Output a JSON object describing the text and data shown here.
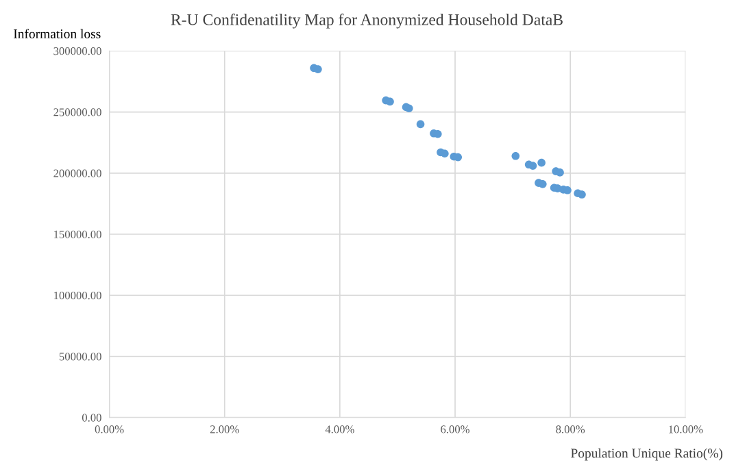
{
  "chart_data": {
    "type": "scatter",
    "title": "R-U Confidenatility Map for Anonymized Household DataB",
    "xlabel": "Population Unique Ratio(%)",
    "ylabel": "Information loss",
    "x": [
      3.55,
      3.62,
      4.8,
      4.87,
      5.15,
      5.2,
      5.4,
      5.63,
      5.7,
      5.75,
      5.82,
      5.98,
      6.05,
      7.05,
      7.28,
      7.35,
      7.5,
      7.75,
      7.82,
      7.45,
      7.52,
      7.72,
      7.78,
      7.88,
      7.95,
      8.13,
      8.2
    ],
    "series": [
      {
        "color": "#5b9bd5",
        "values": [
          286000,
          285000,
          259500,
          258500,
          254000,
          253000,
          240000,
          232500,
          232000,
          217000,
          216000,
          213500,
          213000,
          214000,
          207000,
          206000,
          208500,
          201500,
          200500,
          192000,
          191000,
          188000,
          187500,
          186500,
          186000,
          183500,
          182500
        ]
      }
    ],
    "xlim": [
      0,
      10
    ],
    "ylim": [
      0,
      300000
    ],
    "xticks": [
      {
        "value": 0,
        "label": "0.00%"
      },
      {
        "value": 2,
        "label": "2.00%"
      },
      {
        "value": 4,
        "label": "4.00%"
      },
      {
        "value": 6,
        "label": "6.00%"
      },
      {
        "value": 8,
        "label": "8.00%"
      },
      {
        "value": 10,
        "label": "10.00%"
      }
    ],
    "yticks": [
      {
        "value": 0,
        "label": "0.00"
      },
      {
        "value": 50000,
        "label": "50000.00"
      },
      {
        "value": 100000,
        "label": "100000.00"
      },
      {
        "value": 150000,
        "label": "150000.00"
      },
      {
        "value": 200000,
        "label": "200000.00"
      },
      {
        "value": 250000,
        "label": "250000.00"
      },
      {
        "value": 300000,
        "label": "300000.00"
      }
    ],
    "grid": true,
    "marker": "circle"
  }
}
